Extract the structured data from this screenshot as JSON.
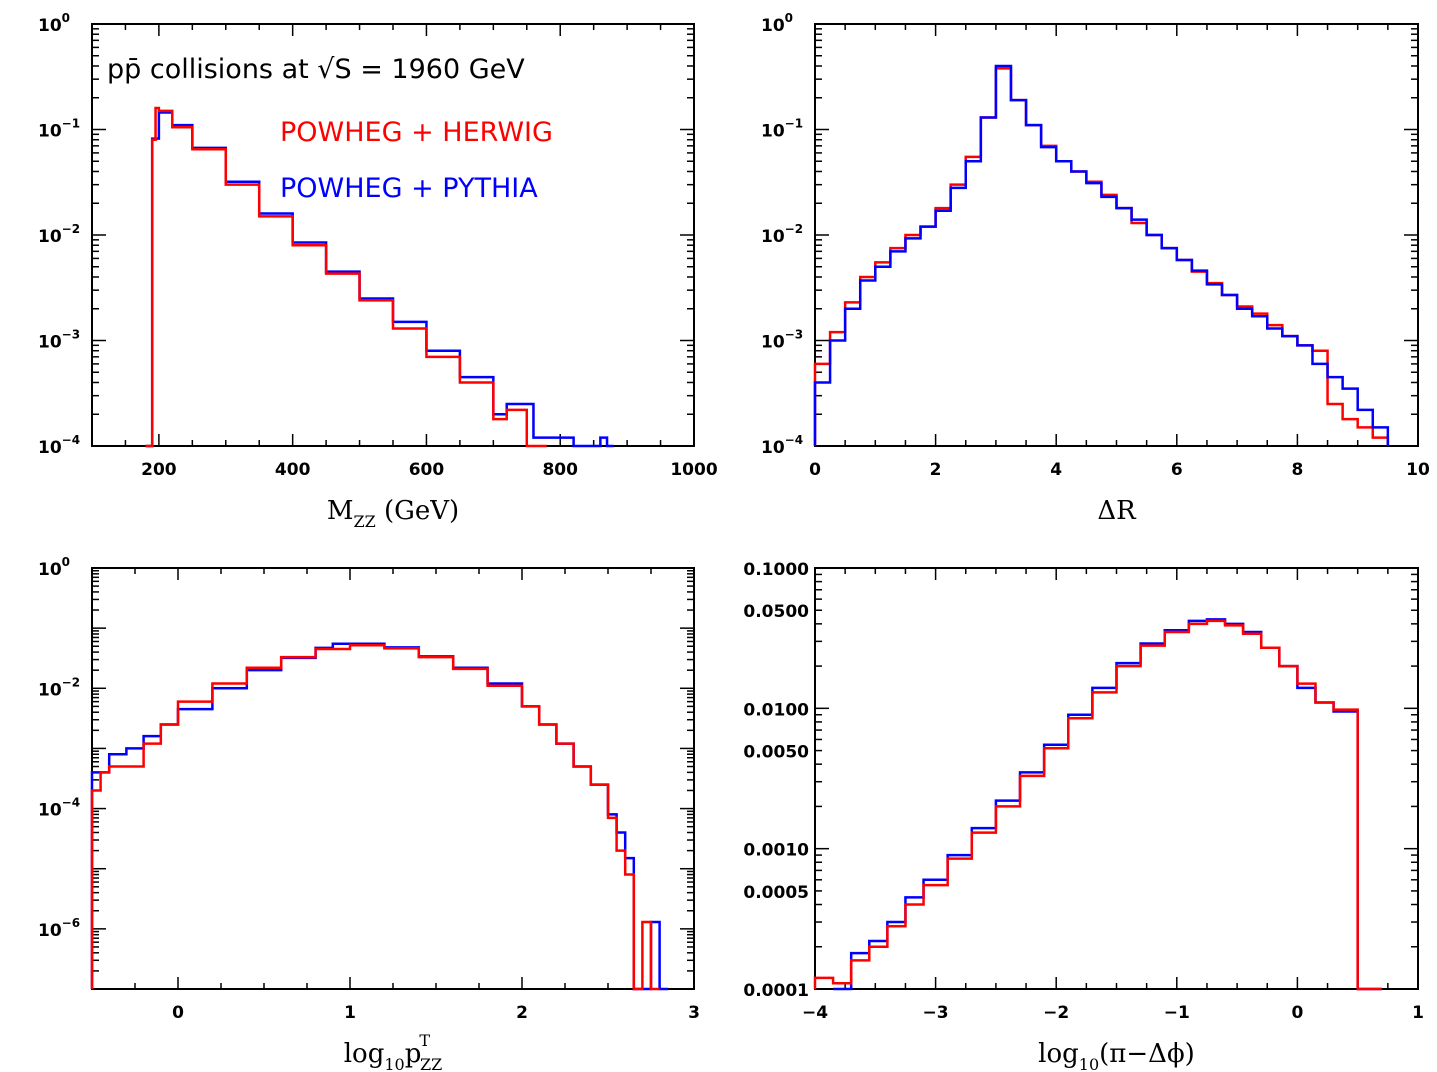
{
  "chart_data": [
    {
      "type": "line",
      "panel": "top-left",
      "xlabel_main": "M",
      "xlabel_sub": "ZZ",
      "xlabel_rest": " (GeV)",
      "xlim": [
        100,
        1000
      ],
      "ylim": [
        0.0001,
        1
      ],
      "yscale": "log",
      "xticks": [
        200,
        400,
        600,
        800,
        1000
      ],
      "yticks": [
        {
          "value": 1,
          "base": "10",
          "exp": "0"
        },
        {
          "value": 0.1,
          "base": "10",
          "exp": "−1"
        },
        {
          "value": 0.01,
          "base": "10",
          "exp": "−2"
        },
        {
          "value": 0.001,
          "base": "10",
          "exp": "−3"
        },
        {
          "value": 0.0001,
          "base": "10",
          "exp": "−4"
        }
      ],
      "annotation": "pp̄ collisions at √S = 1960 GeV",
      "legend": [
        {
          "name": "POWHEG + HERWIG",
          "color": "#ff0000"
        },
        {
          "name": "POWHEG + PYTHIA",
          "color": "#0000ff"
        }
      ],
      "series": [
        {
          "name": "POWHEG + PYTHIA",
          "color": "#0000ff",
          "x": [
            180,
            190,
            200,
            220,
            250,
            300,
            350,
            400,
            450,
            500,
            550,
            600,
            650,
            700,
            720,
            760,
            800,
            820,
            860,
            870
          ],
          "y": [
            0.0001,
            0.082,
            0.145,
            0.11,
            0.067,
            0.032,
            0.016,
            0.0085,
            0.0045,
            0.0025,
            0.0015,
            0.0008,
            0.00045,
            0.0002,
            0.00025,
            0.00012,
            0.00012,
            0.0001,
            0.00012,
            0.0001
          ]
        },
        {
          "name": "POWHEG + HERWIG",
          "color": "#ff0000",
          "x": [
            180,
            190,
            195,
            200,
            220,
            250,
            300,
            350,
            400,
            450,
            500,
            550,
            600,
            650,
            700,
            720,
            750
          ],
          "y": [
            0.0001,
            0.08,
            0.16,
            0.15,
            0.105,
            0.065,
            0.03,
            0.015,
            0.008,
            0.0043,
            0.0024,
            0.0013,
            0.0007,
            0.0004,
            0.00018,
            0.00022,
            0.0001
          ]
        }
      ]
    },
    {
      "type": "line",
      "panel": "top-right",
      "xlabel_main": "ΔR",
      "xlim": [
        0,
        10
      ],
      "ylim": [
        0.0001,
        1
      ],
      "yscale": "log",
      "xticks": [
        0,
        2,
        4,
        6,
        8,
        10
      ],
      "yticks": [
        {
          "value": 1,
          "base": "10",
          "exp": "0"
        },
        {
          "value": 0.1,
          "base": "10",
          "exp": "−1"
        },
        {
          "value": 0.01,
          "base": "10",
          "exp": "−2"
        },
        {
          "value": 0.001,
          "base": "10",
          "exp": "−3"
        },
        {
          "value": 0.0001,
          "base": "10",
          "exp": "−4"
        }
      ],
      "series": [
        {
          "name": "POWHEG + HERWIG",
          "color": "#ff0000",
          "x": [
            0,
            0.25,
            0.5,
            0.75,
            1.0,
            1.25,
            1.5,
            1.75,
            2.0,
            2.25,
            2.5,
            2.75,
            3.0,
            3.25,
            3.5,
            3.75,
            4.0,
            4.25,
            4.5,
            4.75,
            5.0,
            5.25,
            5.5,
            5.75,
            6.0,
            6.25,
            6.5,
            6.75,
            7.0,
            7.25,
            7.5,
            7.75,
            8.0,
            8.25,
            8.5,
            8.75,
            9.0,
            9.25
          ],
          "y": [
            0.0006,
            0.0012,
            0.0023,
            0.004,
            0.0055,
            0.0075,
            0.01,
            0.012,
            0.018,
            0.03,
            0.055,
            0.13,
            0.38,
            0.19,
            0.11,
            0.07,
            0.05,
            0.04,
            0.032,
            0.024,
            0.018,
            0.013,
            0.01,
            0.0075,
            0.0058,
            0.0045,
            0.0035,
            0.0027,
            0.0021,
            0.0018,
            0.0014,
            0.0011,
            0.0009,
            0.0008,
            0.00025,
            0.00018,
            0.00015,
            0.00012
          ]
        },
        {
          "name": "POWHEG + PYTHIA",
          "color": "#0000ff",
          "x": [
            0,
            0.25,
            0.5,
            0.75,
            1.0,
            1.25,
            1.5,
            1.75,
            2.0,
            2.25,
            2.5,
            2.75,
            3.0,
            3.25,
            3.5,
            3.75,
            4.0,
            4.25,
            4.5,
            4.75,
            5.0,
            5.25,
            5.5,
            5.75,
            6.0,
            6.25,
            6.5,
            6.75,
            7.0,
            7.25,
            7.5,
            7.75,
            8.0,
            8.25,
            8.5,
            8.75,
            9.0,
            9.25
          ],
          "y": [
            0.0004,
            0.001,
            0.002,
            0.0037,
            0.005,
            0.007,
            0.0093,
            0.012,
            0.017,
            0.028,
            0.05,
            0.13,
            0.4,
            0.19,
            0.11,
            0.068,
            0.05,
            0.04,
            0.031,
            0.023,
            0.018,
            0.014,
            0.01,
            0.0075,
            0.0058,
            0.0046,
            0.0034,
            0.0027,
            0.002,
            0.0017,
            0.0013,
            0.0011,
            0.0009,
            0.0006,
            0.00045,
            0.00035,
            0.00022,
            0.00015
          ]
        }
      ]
    },
    {
      "type": "line",
      "panel": "bottom-left",
      "xlabel_main": "log",
      "xlabel_sub": "10",
      "xlabel_rest": "p",
      "xlabel_sup": "T",
      "xlabel_sub2": "ZZ",
      "xlim": [
        -0.5,
        3
      ],
      "ylim": [
        1e-07,
        1
      ],
      "yscale": "log",
      "xticks": [
        0,
        1,
        2,
        3
      ],
      "yticks": [
        {
          "value": 1,
          "base": "10",
          "exp": "0"
        },
        {
          "value": 0.01,
          "base": "10",
          "exp": "−2"
        },
        {
          "value": 0.0001,
          "base": "10",
          "exp": "−4"
        },
        {
          "value": 1e-06,
          "base": "10",
          "exp": "−6"
        }
      ],
      "series": [
        {
          "name": "POWHEG + PYTHIA",
          "color": "#0000ff",
          "x": [
            -0.5,
            -0.4,
            -0.3,
            -0.2,
            -0.1,
            0.0,
            0.2,
            0.4,
            0.6,
            0.8,
            0.9,
            1.0,
            1.2,
            1.4,
            1.6,
            1.8,
            2.0,
            2.1,
            2.2,
            2.3,
            2.4,
            2.5,
            2.55,
            2.6,
            2.65,
            2.7,
            2.75,
            2.8
          ],
          "y": [
            0.0004,
            0.0008,
            0.001,
            0.0016,
            0.0025,
            0.0045,
            0.01,
            0.02,
            0.032,
            0.047,
            0.055,
            0.055,
            0.048,
            0.034,
            0.022,
            0.012,
            0.005,
            0.0025,
            0.0012,
            0.0005,
            0.00025,
            8e-05,
            4e-05,
            1.5e-05,
            1e-07,
            1e-07,
            1.3e-06,
            1e-07
          ]
        },
        {
          "name": "POWHEG + HERWIG",
          "color": "#ff0000",
          "x": [
            -0.5,
            -0.45,
            -0.4,
            -0.3,
            -0.2,
            -0.1,
            0.0,
            0.2,
            0.4,
            0.6,
            0.8,
            1.0,
            1.2,
            1.4,
            1.6,
            1.8,
            2.0,
            2.1,
            2.2,
            2.3,
            2.4,
            2.5,
            2.55,
            2.6,
            2.65,
            2.7,
            2.75
          ],
          "y": [
            0.0002,
            0.0004,
            0.0005,
            0.0005,
            0.0012,
            0.0025,
            0.006,
            0.012,
            0.022,
            0.033,
            0.045,
            0.052,
            0.046,
            0.033,
            0.021,
            0.011,
            0.005,
            0.0025,
            0.0012,
            0.0005,
            0.00025,
            7e-05,
            2e-05,
            8e-06,
            1e-07,
            1.3e-06,
            1e-07
          ]
        }
      ]
    },
    {
      "type": "line",
      "panel": "bottom-right",
      "xlabel_main": "log",
      "xlabel_sub": "10",
      "xlabel_rest": "(π−Δϕ)",
      "xlim": [
        -4,
        1
      ],
      "ylim": [
        0.0001,
        0.1
      ],
      "yscale": "log",
      "xticks": [
        -4,
        -3,
        -2,
        -1,
        0,
        1
      ],
      "xtick_labels": [
        "−4",
        "−3",
        "−2",
        "−1",
        "0",
        "1"
      ],
      "yticks": [
        {
          "value": 0.1,
          "label": "0.1000"
        },
        {
          "value": 0.05,
          "label": "0.0500"
        },
        {
          "value": 0.01,
          "label": "0.0100"
        },
        {
          "value": 0.005,
          "label": "0.0050"
        },
        {
          "value": 0.001,
          "label": "0.0010"
        },
        {
          "value": 0.0005,
          "label": "0.0005"
        },
        {
          "value": 0.0001,
          "label": "0.0001"
        }
      ],
      "series": [
        {
          "name": "POWHEG + PYTHIA",
          "color": "#0000ff",
          "x": [
            -3.85,
            -3.7,
            -3.55,
            -3.4,
            -3.25,
            -3.1,
            -2.9,
            -2.7,
            -2.5,
            -2.3,
            -2.1,
            -1.9,
            -1.7,
            -1.5,
            -1.3,
            -1.1,
            -0.9,
            -0.75,
            -0.6,
            -0.45,
            -0.3,
            -0.15,
            0.0,
            0.15,
            0.3,
            0.5
          ],
          "y": [
            0.0001,
            0.00018,
            0.00022,
            0.0003,
            0.00045,
            0.0006,
            0.0009,
            0.0014,
            0.0022,
            0.0035,
            0.0055,
            0.009,
            0.014,
            0.021,
            0.029,
            0.036,
            0.042,
            0.043,
            0.04,
            0.035,
            0.027,
            0.02,
            0.014,
            0.011,
            0.0095,
            0.0001
          ]
        },
        {
          "name": "POWHEG + HERWIG",
          "color": "#ff0000",
          "x": [
            -4.0,
            -3.85,
            -3.7,
            -3.55,
            -3.4,
            -3.25,
            -3.1,
            -2.9,
            -2.7,
            -2.5,
            -2.3,
            -2.1,
            -1.9,
            -1.7,
            -1.5,
            -1.3,
            -1.1,
            -0.9,
            -0.75,
            -0.6,
            -0.45,
            -0.3,
            -0.15,
            0.0,
            0.15,
            0.3,
            0.5
          ],
          "y": [
            0.00012,
            0.00011,
            0.00016,
            0.0002,
            0.00028,
            0.0004,
            0.00055,
            0.00085,
            0.0013,
            0.002,
            0.0033,
            0.0052,
            0.0085,
            0.013,
            0.02,
            0.028,
            0.035,
            0.04,
            0.042,
            0.039,
            0.034,
            0.027,
            0.02,
            0.015,
            0.011,
            0.0098,
            0.0001
          ]
        }
      ]
    }
  ]
}
